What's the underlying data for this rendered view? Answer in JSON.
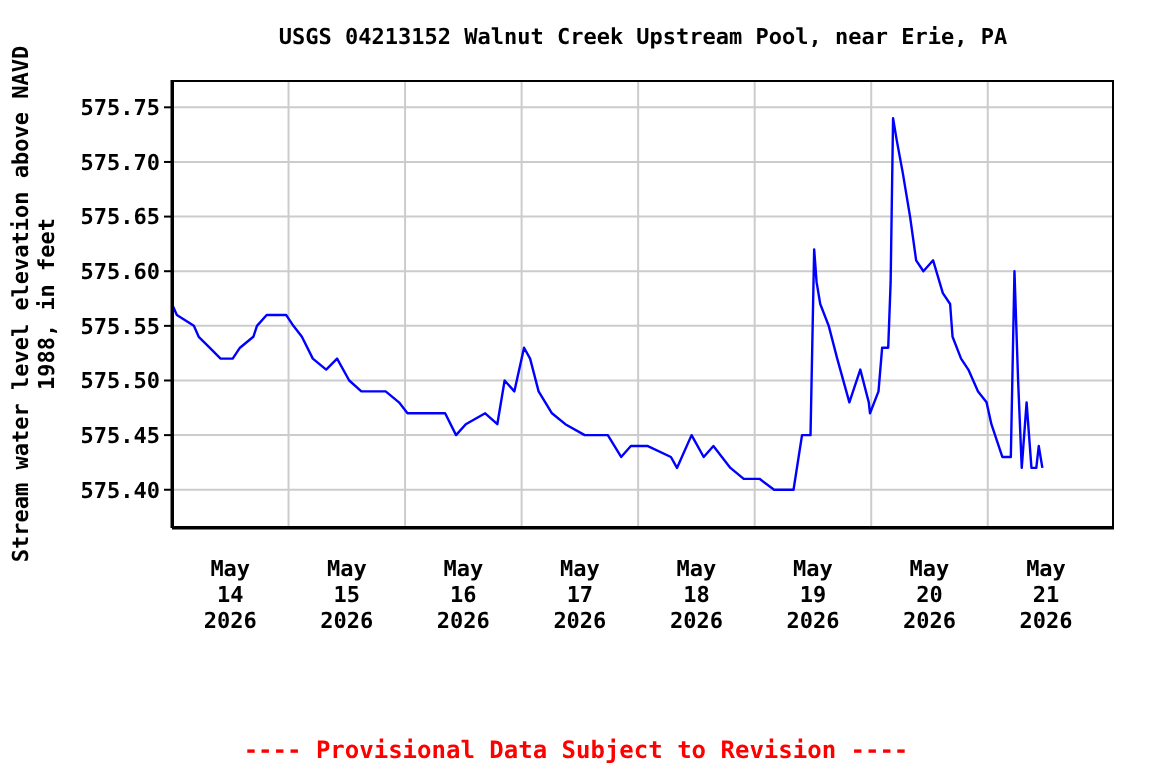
{
  "chart_data": {
    "type": "line",
    "title": "USGS 04213152 Walnut Creek Upstream Pool, near Erie, PA",
    "ylabel": "Stream water level elevation above NAVD 1988, in feet",
    "annotations": [
      "---- Provisional Data Subject to Revision ----"
    ],
    "xlim": [
      "2026-05-14T00:00",
      "2026-05-22T02:00"
    ],
    "xticks": [
      {
        "value": "2026-05-14T12:00",
        "label": "May 14 2026"
      },
      {
        "value": "2026-05-15T00:00",
        "label": null
      },
      {
        "value": "2026-05-15T12:00",
        "label": "May 15 2026"
      },
      {
        "value": "2026-05-16T00:00",
        "label": null
      },
      {
        "value": "2026-05-16T12:00",
        "label": "May 16 2026"
      },
      {
        "value": "2026-05-17T00:00",
        "label": null
      },
      {
        "value": "2026-05-17T12:00",
        "label": "May 17 2026"
      },
      {
        "value": "2026-05-18T00:00",
        "label": null
      },
      {
        "value": "2026-05-18T12:00",
        "label": "May 18 2026"
      },
      {
        "value": "2026-05-19T00:00",
        "label": null
      },
      {
        "value": "2026-05-19T12:00",
        "label": "May 19 2026"
      },
      {
        "value": "2026-05-20T00:00",
        "label": null
      },
      {
        "value": "2026-05-20T12:00",
        "label": "May 20 2026"
      },
      {
        "value": "2026-05-21T00:00",
        "label": null
      },
      {
        "value": "2026-05-21T12:00",
        "label": "May 21 2026"
      }
    ],
    "ylim": [
      575.365,
      575.775
    ],
    "yticks": [
      {
        "value": 575.4,
        "label": "575.40"
      },
      {
        "value": 575.45,
        "label": "575.45"
      },
      {
        "value": 575.5,
        "label": "575.50"
      },
      {
        "value": 575.55,
        "label": "575.55"
      },
      {
        "value": 575.6,
        "label": "575.60"
      },
      {
        "value": 575.65,
        "label": "575.65"
      },
      {
        "value": 575.7,
        "label": "575.70"
      },
      {
        "value": 575.75,
        "label": "575.75"
      }
    ],
    "grid": true,
    "legend": false,
    "marker": "none",
    "line_style": "solid",
    "x": [
      "2026-05-14T00:00",
      "2026-05-14T01:00",
      "2026-05-14T04:30",
      "2026-05-14T05:30",
      "2026-05-14T07:45",
      "2026-05-14T10:00",
      "2026-05-14T12:30",
      "2026-05-14T14:00",
      "2026-05-14T16:45",
      "2026-05-14T17:30",
      "2026-05-14T19:30",
      "2026-05-14T23:30",
      "2026-05-15T01:00",
      "2026-05-15T02:45",
      "2026-05-15T05:00",
      "2026-05-15T07:45",
      "2026-05-15T10:00",
      "2026-05-15T12:30",
      "2026-05-15T15:00",
      "2026-05-15T17:15",
      "2026-05-15T20:00",
      "2026-05-15T22:45",
      "2026-05-16T00:30",
      "2026-05-16T08:15",
      "2026-05-16T10:30",
      "2026-05-16T12:30",
      "2026-05-16T16:30",
      "2026-05-16T19:00",
      "2026-05-16T20:30",
      "2026-05-16T22:30",
      "2026-05-17T00:30",
      "2026-05-17T01:45",
      "2026-05-17T03:30",
      "2026-05-17T06:15",
      "2026-05-17T09:00",
      "2026-05-17T13:00",
      "2026-05-17T17:45",
      "2026-05-17T20:30",
      "2026-05-17T22:30",
      "2026-05-18T02:00",
      "2026-05-18T06:45",
      "2026-05-18T08:00",
      "2026-05-18T11:00",
      "2026-05-18T13:30",
      "2026-05-18T15:30",
      "2026-05-18T19:00",
      "2026-05-18T21:45",
      "2026-05-19T01:00",
      "2026-05-19T04:00",
      "2026-05-19T08:00",
      "2026-05-19T09:45",
      "2026-05-19T11:30",
      "2026-05-19T12:15",
      "2026-05-19T12:45",
      "2026-05-19T13:30",
      "2026-05-19T15:15",
      "2026-05-19T17:00",
      "2026-05-19T19:30",
      "2026-05-19T21:45",
      "2026-05-19T23:30",
      "2026-05-19T23:45",
      "2026-05-20T01:30",
      "2026-05-20T02:15",
      "2026-05-20T03:30",
      "2026-05-20T04:00",
      "2026-05-20T04:30",
      "2026-05-20T05:15",
      "2026-05-20T06:30",
      "2026-05-20T08:00",
      "2026-05-20T09:15",
      "2026-05-20T10:45",
      "2026-05-20T12:45",
      "2026-05-20T14:45",
      "2026-05-20T16:15",
      "2026-05-20T16:45",
      "2026-05-20T18:30",
      "2026-05-20T20:00",
      "2026-05-20T22:00",
      "2026-05-20T23:45",
      "2026-05-21T00:45",
      "2026-05-21T03:00",
      "2026-05-21T04:45",
      "2026-05-21T05:30",
      "2026-05-21T06:15",
      "2026-05-21T07:00",
      "2026-05-21T08:00",
      "2026-05-21T09:00",
      "2026-05-21T10:00",
      "2026-05-21T10:30",
      "2026-05-21T11:15"
    ],
    "series": [
      {
        "color": "#0000ff",
        "values": [
          575.57,
          575.56,
          575.55,
          575.54,
          575.53,
          575.52,
          575.52,
          575.53,
          575.54,
          575.55,
          575.56,
          575.56,
          575.55,
          575.54,
          575.52,
          575.51,
          575.52,
          575.5,
          575.49,
          575.49,
          575.49,
          575.48,
          575.47,
          575.47,
          575.45,
          575.46,
          575.47,
          575.46,
          575.5,
          575.49,
          575.53,
          575.52,
          575.49,
          575.47,
          575.46,
          575.45,
          575.45,
          575.43,
          575.44,
          575.44,
          575.43,
          575.42,
          575.45,
          575.43,
          575.44,
          575.42,
          575.41,
          575.41,
          575.4,
          575.4,
          575.45,
          575.45,
          575.62,
          575.59,
          575.57,
          575.55,
          575.52,
          575.48,
          575.51,
          575.48,
          575.47,
          575.49,
          575.53,
          575.53,
          575.59,
          575.74,
          575.72,
          575.69,
          575.65,
          575.61,
          575.6,
          575.61,
          575.58,
          575.57,
          575.54,
          575.52,
          575.51,
          575.49,
          575.48,
          575.46,
          575.43,
          575.43,
          575.6,
          575.5,
          575.42,
          575.48,
          575.42,
          575.42,
          575.44,
          575.42
        ]
      }
    ]
  }
}
